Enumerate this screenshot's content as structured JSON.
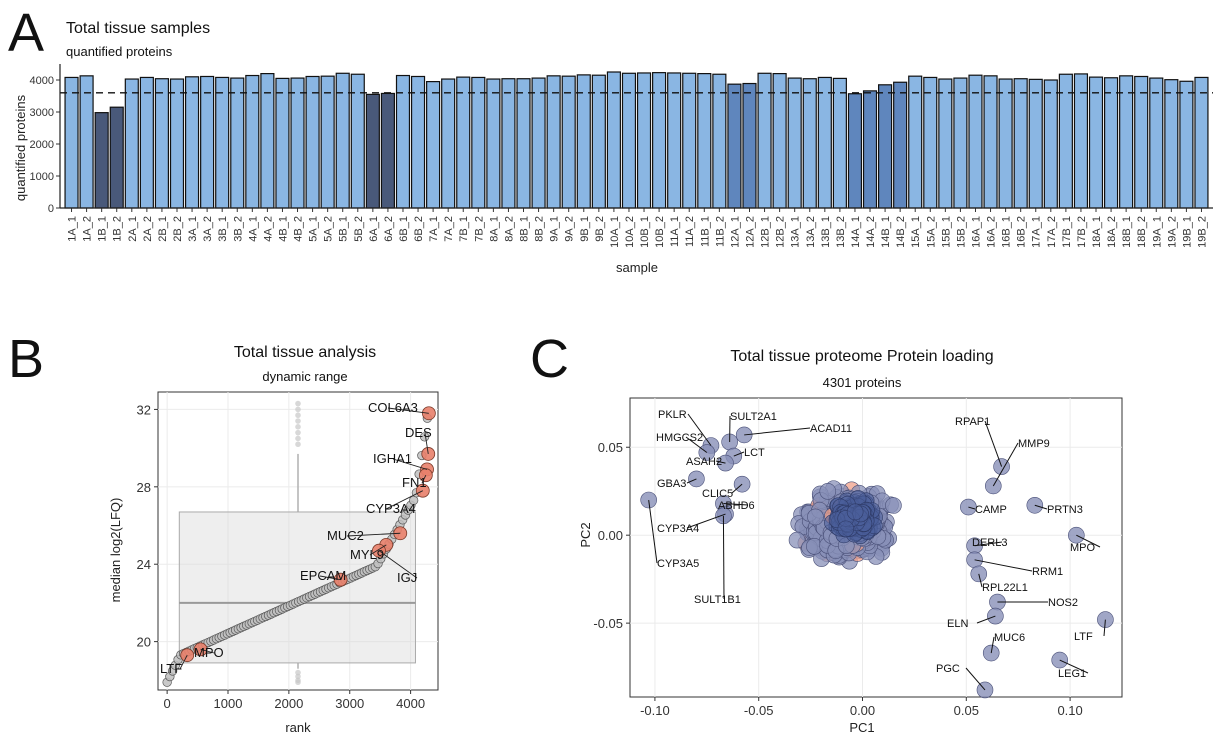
{
  "panels": {
    "a": "A",
    "b": "B",
    "c": "C"
  },
  "chart_data": [
    {
      "type": "bar",
      "title": "Total tissue samples",
      "subtitle": "quantified proteins",
      "xlabel": "sample",
      "ylabel": "quantified proteins",
      "ylim": [
        0,
        4500
      ],
      "yticks": [
        0,
        1000,
        2000,
        3000,
        4000
      ],
      "threshold": 3600,
      "colors": {
        "normal": "#8ab6e3",
        "medium": "#5f86bd",
        "dark": "#49597a",
        "edge": "#111111"
      },
      "categories": [
        "1A_1",
        "1A_2",
        "1B_1",
        "1B_2",
        "2A_1",
        "2A_2",
        "2B_1",
        "2B_2",
        "3A_1",
        "3A_2",
        "3B_1",
        "3B_2",
        "4A_1",
        "4A_2",
        "4B_1",
        "4B_2",
        "5A_1",
        "5A_2",
        "5B_1",
        "5B_2",
        "6A_1",
        "6A_2",
        "6B_1",
        "6B_2",
        "7A_1",
        "7A_2",
        "7B_1",
        "7B_2",
        "8A_1",
        "8A_2",
        "8B_1",
        "8B_2",
        "9A_1",
        "9A_2",
        "9B_1",
        "9B_2",
        "10A_1",
        "10A_2",
        "10B_1",
        "10B_2",
        "11A_1",
        "11A_2",
        "11B_1",
        "11B_2",
        "12A_1",
        "12A_2",
        "12B_1",
        "12B_2",
        "13A_1",
        "13A_2",
        "13B_1",
        "13B_2",
        "14A_1",
        "14A_2",
        "14B_1",
        "14B_2",
        "15A_1",
        "15A_2",
        "15B_1",
        "15B_2",
        "16A_1",
        "16A_2",
        "16B_1",
        "16B_2",
        "17A_1",
        "17A_2",
        "17B_1",
        "17B_2",
        "18A_1",
        "18A_2",
        "18B_1",
        "18B_2",
        "19A_1",
        "19A_2",
        "19B_1",
        "19B_2"
      ],
      "values": [
        4080,
        4130,
        2980,
        3150,
        4030,
        4080,
        4040,
        4030,
        4100,
        4110,
        4080,
        4060,
        4140,
        4200,
        4050,
        4060,
        4110,
        4120,
        4210,
        4180,
        3550,
        3580,
        4140,
        4110,
        3950,
        4030,
        4090,
        4080,
        4030,
        4040,
        4040,
        4060,
        4130,
        4120,
        4160,
        4150,
        4250,
        4210,
        4220,
        4230,
        4220,
        4210,
        4200,
        4180,
        3870,
        3890,
        4210,
        4200,
        4060,
        4040,
        4080,
        4050,
        3570,
        3660,
        3850,
        3930,
        4120,
        4080,
        4030,
        4060,
        4150,
        4130,
        4030,
        4040,
        4020,
        4000,
        4180,
        4190,
        4090,
        4070,
        4130,
        4110,
        4060,
        4010,
        3960,
        4080
      ],
      "shade": [
        "n",
        "n",
        "d",
        "d",
        "n",
        "n",
        "n",
        "n",
        "n",
        "n",
        "n",
        "n",
        "n",
        "n",
        "n",
        "n",
        "n",
        "n",
        "n",
        "n",
        "d",
        "d",
        "n",
        "n",
        "n",
        "n",
        "n",
        "n",
        "n",
        "n",
        "n",
        "n",
        "n",
        "n",
        "n",
        "n",
        "n",
        "n",
        "n",
        "n",
        "n",
        "n",
        "n",
        "n",
        "m",
        "m",
        "n",
        "n",
        "n",
        "n",
        "n",
        "n",
        "m",
        "m",
        "m",
        "m",
        "n",
        "n",
        "n",
        "n",
        "n",
        "n",
        "n",
        "n",
        "n",
        "n",
        "n",
        "n",
        "n",
        "n",
        "n",
        "n",
        "n",
        "n",
        "n",
        "n"
      ]
    },
    {
      "type": "scatter",
      "title": "Total tissue analysis",
      "subtitle": "dynamic range",
      "xlabel": "rank",
      "ylabel": "median log2(LFQ)",
      "xlim": [
        -150,
        4450
      ],
      "ylim": [
        17.5,
        32.9
      ],
      "xticks": [
        0,
        1000,
        2000,
        3000,
        4000
      ],
      "yticks": [
        20,
        24,
        28,
        32
      ],
      "boxplot": {
        "x": 2150,
        "left": 200,
        "right": 4080,
        "q1": 18.9,
        "median": 22.0,
        "q3": 26.7,
        "whisker_low": 18.6,
        "whisker_high": 29.7,
        "outliers": [
          30.2,
          30.5,
          30.8,
          31.1,
          31.4,
          31.7,
          32.0,
          32.3,
          18.4,
          18.2,
          18.0,
          17.9
        ]
      },
      "colors": {
        "point": "#c0c0c0",
        "highlight": "#e8806a",
        "box": "#d9d9d9"
      },
      "highlighted": [
        {
          "label": "COL6A3",
          "rank": 4300,
          "value": 31.8
        },
        {
          "label": "DES",
          "rank": 4290,
          "value": 29.7
        },
        {
          "label": "IGHA1",
          "rank": 4270,
          "value": 28.9
        },
        {
          "label": "FN1",
          "rank": 4250,
          "value": 28.6
        },
        {
          "label": "CYP3A4",
          "rank": 4200,
          "value": 27.8
        },
        {
          "label": "MUC2",
          "rank": 3830,
          "value": 25.6
        },
        {
          "label": "MYL9",
          "rank": 3600,
          "value": 25.0
        },
        {
          "label": "IGJ",
          "rank": 3480,
          "value": 24.7
        },
        {
          "label": "EPCAM",
          "rank": 2850,
          "value": 23.2
        },
        {
          "label": "MPO",
          "rank": 550,
          "value": 19.6
        },
        {
          "label": "LTF",
          "rank": 330,
          "value": 19.3
        }
      ]
    },
    {
      "type": "scatter",
      "title": "Total tissue proteome Protein loading",
      "subtitle": "4301 proteins",
      "xlabel": "PC1",
      "ylabel": "PC2",
      "xlim": [
        -0.112,
        0.125
      ],
      "ylim": [
        -0.092,
        0.078
      ],
      "xticks": [
        -0.1,
        -0.05,
        0,
        0.05,
        0.1
      ],
      "xticklabels": [
        "-0.10",
        "-0.05",
        "0.00",
        "0.05",
        "0.10"
      ],
      "yticks": [
        0.05,
        0,
        -0.05
      ],
      "yticklabels": [
        "0.05",
        "0.00",
        "-0.05"
      ],
      "colors": {
        "point": "#8890b8",
        "highlight": "#f0a08a",
        "dense": "#4a5f9a"
      },
      "labeled": [
        {
          "label": "PKLR",
          "x": -0.073,
          "y": 0.051
        },
        {
          "label": "SULT2A1",
          "x": -0.064,
          "y": 0.053
        },
        {
          "label": "ACAD11",
          "x": -0.057,
          "y": 0.057
        },
        {
          "label": "HMGCS2",
          "x": -0.075,
          "y": 0.047
        },
        {
          "label": "LCT",
          "x": -0.062,
          "y": 0.045
        },
        {
          "label": "ASAH2",
          "x": -0.066,
          "y": 0.041
        },
        {
          "label": "GBA3",
          "x": -0.08,
          "y": 0.032
        },
        {
          "label": "CLIC5",
          "x": -0.058,
          "y": 0.029
        },
        {
          "label": "ABHD6",
          "x": -0.067,
          "y": 0.018
        },
        {
          "label": "CYP3A4",
          "x": -0.066,
          "y": 0.012
        },
        {
          "label": "CYP3A5",
          "x": -0.103,
          "y": 0.02
        },
        {
          "label": "SULT1B1",
          "x": -0.067,
          "y": 0.011
        },
        {
          "label": "RPAP1",
          "x": 0.067,
          "y": 0.039
        },
        {
          "label": "MMP9",
          "x": 0.063,
          "y": 0.028
        },
        {
          "label": "CAMP",
          "x": 0.051,
          "y": 0.016
        },
        {
          "label": "PRTN3",
          "x": 0.083,
          "y": 0.017
        },
        {
          "label": "MPO",
          "x": 0.103,
          "y": 0.0
        },
        {
          "label": "DERL3",
          "x": 0.054,
          "y": -0.006
        },
        {
          "label": "RRM1",
          "x": 0.054,
          "y": -0.014
        },
        {
          "label": "RPL22L1",
          "x": 0.056,
          "y": -0.022
        },
        {
          "label": "NOS2",
          "x": 0.065,
          "y": -0.038
        },
        {
          "label": "ELN",
          "x": 0.064,
          "y": -0.046
        },
        {
          "label": "LTF",
          "x": 0.117,
          "y": -0.048
        },
        {
          "label": "MUC6",
          "x": 0.062,
          "y": -0.067
        },
        {
          "label": "LEG1",
          "x": 0.095,
          "y": -0.071
        },
        {
          "label": "PGC",
          "x": 0.059,
          "y": -0.088
        }
      ]
    }
  ]
}
